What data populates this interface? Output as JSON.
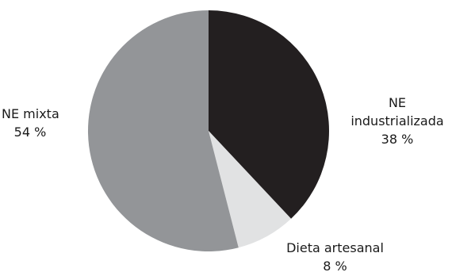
{
  "chart_data": {
    "type": "pie",
    "title": "",
    "start_angle_deg": 0,
    "direction": "clockwise",
    "slices": [
      {
        "label_lines": [
          "NE",
          "industrializada"
        ],
        "value_label": "38 %",
        "value": 38,
        "color": "#231f20"
      },
      {
        "label_lines": [
          "Dieta artesanal"
        ],
        "value_label": "8 %",
        "value": 8,
        "color": "#e1e2e3"
      },
      {
        "label_lines": [
          "NE mixta"
        ],
        "value_label": "54 %",
        "value": 54,
        "color": "#939598"
      }
    ]
  }
}
